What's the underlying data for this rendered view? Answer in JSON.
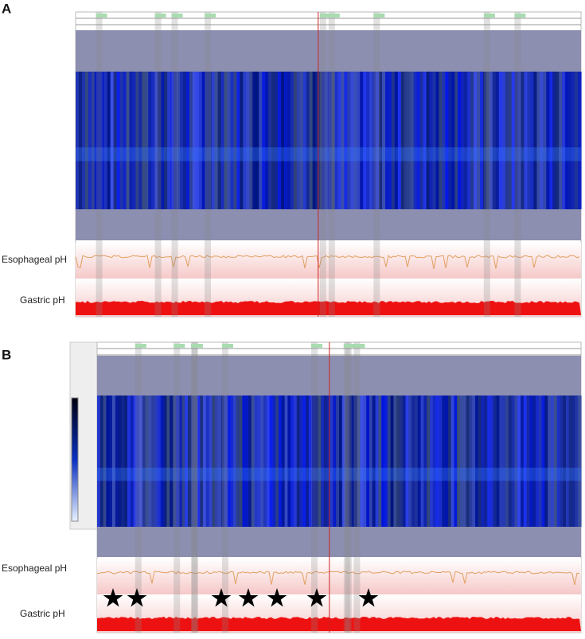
{
  "panels": [
    {
      "label": "A",
      "traces": [
        "Esophageal pH",
        "Gastric pH"
      ]
    },
    {
      "label": "B",
      "traces": [
        "Esophageal pH",
        "Gastric pH"
      ]
    }
  ]
}
